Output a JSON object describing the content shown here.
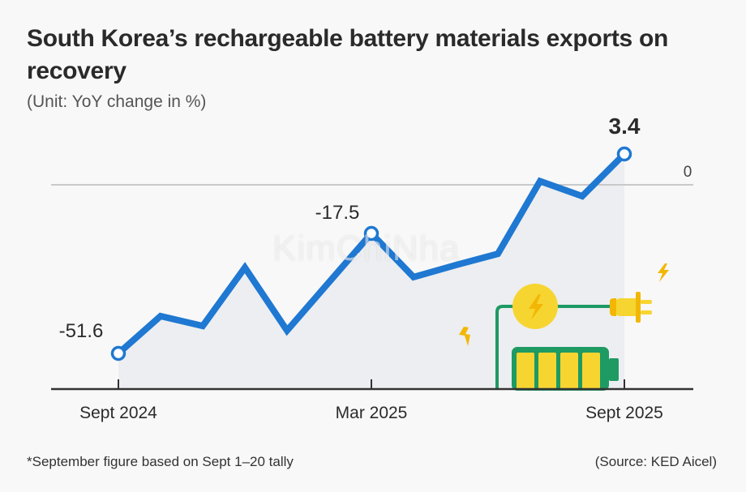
{
  "header": {
    "title": "South Korea’s rechargeable battery materials exports on recovery",
    "subtitle": "(Unit: YoY change in %)"
  },
  "footer": {
    "footnote": "*September figure based on Sept 1–20 tally",
    "source": "(Source: KED Aicel)"
  },
  "watermark": "KimChiNha",
  "colors": {
    "line": "#1f78d1",
    "area": "#eceef1",
    "battery_green": "#1e9a63",
    "battery_yellow": "#f7d531",
    "bolt": "#f2b705"
  },
  "illustration": [
    "battery-icon",
    "plug-icon",
    "lightning-bolt-icon"
  ],
  "chart_data": {
    "type": "area",
    "title": "South Korea’s rechargeable battery materials exports on recovery",
    "subtitle": "(Unit: YoY change in %)",
    "xlabel": "",
    "ylabel": "YoY change in %",
    "x": [
      "Sept 2024",
      "Oct 2024",
      "Nov 2024",
      "Dec 2024",
      "Jan 2025",
      "Feb 2025",
      "Mar 2025",
      "Apr 2025",
      "May 2025",
      "Jun 2025",
      "Jul 2025",
      "Aug 2025",
      "Sept 2025"
    ],
    "series": [
      {
        "name": "Battery materials exports YoY change",
        "values": [
          -51.6,
          -41.0,
          -43.8,
          -27.2,
          -45.1,
          -31.3,
          -17.5,
          -29.9,
          -26.5,
          -23.3,
          0.4,
          -4.1,
          3.4
        ]
      }
    ],
    "x_tick_labels": [
      "Sept 2024",
      "Mar 2025",
      "Sept 2025"
    ],
    "y_tick_labels": [
      "0"
    ],
    "data_labels": [
      {
        "x": "Sept 2024",
        "label": "-51.6"
      },
      {
        "x": "Mar 2025",
        "label": "-17.5"
      },
      {
        "x": "Sept 2025",
        "label": "3.4"
      }
    ],
    "reference_line": 0,
    "grid": false,
    "legend": "none"
  }
}
